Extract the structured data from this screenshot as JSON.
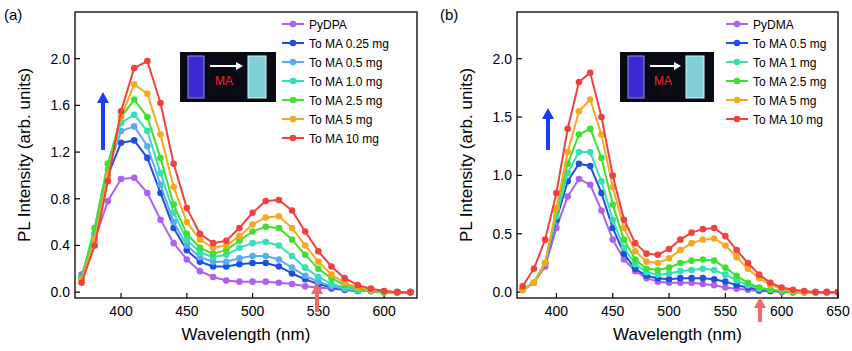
{
  "chart_data": [
    {
      "type": "line",
      "title": "(a)",
      "x_label": "Wavelength (nm)",
      "y_label": "PL Intensity (arb. units)",
      "annotations": [
        "MA"
      ],
      "marker": "circle",
      "legend": "upper right",
      "x": [
        370,
        380,
        390,
        400,
        410,
        420,
        430,
        440,
        450,
        460,
        470,
        480,
        490,
        500,
        510,
        520,
        530,
        540,
        550,
        560,
        570,
        580,
        590,
        600,
        610,
        620
      ],
      "xlim": [
        365,
        625
      ],
      "xticks": [
        400,
        450,
        500,
        550,
        600
      ],
      "ylim": [
        -0.05,
        2.4
      ],
      "yticks": [
        {
          "value": 0,
          "label": "0.0"
        },
        {
          "value": 0.4,
          "label": "0.4"
        },
        {
          "value": 0.8,
          "label": "0.8"
        },
        {
          "value": 1.2,
          "label": "1.2"
        },
        {
          "value": 1.6,
          "label": "1.6"
        },
        {
          "value": 2.0,
          "label": "2.0"
        }
      ],
      "series": [
        {
          "name": "PyDPA",
          "color": "#b060f0",
          "values": [
            0.15,
            0.45,
            0.78,
            0.97,
            0.98,
            0.85,
            0.62,
            0.42,
            0.28,
            0.18,
            0.13,
            0.1,
            0.09,
            0.09,
            0.09,
            0.08,
            0.07,
            0.05,
            0.04,
            0.03,
            0.02,
            0.01,
            0.01,
            0.0,
            0.0,
            0.0
          ]
        },
        {
          "name": "To MA 0.25 mg",
          "color": "#1f4fe0",
          "values": [
            0.12,
            0.5,
            1.0,
            1.28,
            1.3,
            1.15,
            0.85,
            0.55,
            0.36,
            0.26,
            0.22,
            0.22,
            0.24,
            0.25,
            0.25,
            0.22,
            0.16,
            0.11,
            0.07,
            0.04,
            0.02,
            0.01,
            0.01,
            0,
            0,
            0
          ]
        },
        {
          "name": "To MA 0.5 mg",
          "color": "#5aabf5",
          "values": [
            0.12,
            0.5,
            1.05,
            1.38,
            1.42,
            1.25,
            0.92,
            0.6,
            0.4,
            0.3,
            0.26,
            0.26,
            0.29,
            0.31,
            0.31,
            0.28,
            0.21,
            0.14,
            0.09,
            0.05,
            0.03,
            0.01,
            0.01,
            0,
            0,
            0
          ]
        },
        {
          "name": "To MA 1.0 mg",
          "color": "#34e0b8",
          "values": [
            0.12,
            0.55,
            1.1,
            1.45,
            1.52,
            1.38,
            1.02,
            0.68,
            0.45,
            0.34,
            0.3,
            0.32,
            0.38,
            0.42,
            0.43,
            0.4,
            0.31,
            0.21,
            0.13,
            0.07,
            0.04,
            0.02,
            0.01,
            0,
            0,
            0
          ]
        },
        {
          "name": "To MA 2.5 mg",
          "color": "#40e030",
          "values": [
            0.12,
            0.55,
            1.1,
            1.5,
            1.65,
            1.5,
            1.15,
            0.75,
            0.5,
            0.38,
            0.33,
            0.36,
            0.44,
            0.52,
            0.56,
            0.55,
            0.45,
            0.32,
            0.2,
            0.12,
            0.06,
            0.03,
            0.01,
            0,
            0,
            0
          ]
        },
        {
          "name": "To MA 5 mg",
          "color": "#f7a820",
          "values": [
            0.1,
            0.45,
            1.0,
            1.5,
            1.78,
            1.7,
            1.35,
            0.9,
            0.6,
            0.45,
            0.38,
            0.4,
            0.48,
            0.58,
            0.64,
            0.65,
            0.55,
            0.4,
            0.26,
            0.15,
            0.08,
            0.04,
            0.02,
            0.01,
            0,
            0
          ]
        },
        {
          "name": "To MA 10 mg",
          "color": "#f04040",
          "values": [
            0.08,
            0.4,
            0.95,
            1.55,
            1.92,
            1.98,
            1.62,
            1.1,
            0.72,
            0.5,
            0.42,
            0.44,
            0.55,
            0.68,
            0.78,
            0.79,
            0.7,
            0.52,
            0.35,
            0.22,
            0.12,
            0.06,
            0.03,
            0.01,
            0,
            0
          ]
        }
      ]
    },
    {
      "type": "line",
      "title": "(b)",
      "x_label": "Wavelength (nm)",
      "y_label": "PL Intensity (arb. units)",
      "annotations": [
        "MA"
      ],
      "marker": "circle",
      "legend": "upper right",
      "x": [
        370,
        380,
        390,
        400,
        410,
        420,
        430,
        440,
        450,
        460,
        470,
        480,
        490,
        500,
        510,
        520,
        530,
        540,
        550,
        560,
        570,
        580,
        590,
        600,
        610,
        620,
        630,
        640,
        650
      ],
      "xlim": [
        365,
        650
      ],
      "xticks": [
        400,
        450,
        500,
        550,
        600,
        650
      ],
      "ylim": [
        -0.05,
        2.4
      ],
      "yticks": [
        {
          "value": 0,
          "label": "0.0"
        },
        {
          "value": 0.5,
          "label": "0.5"
        },
        {
          "value": 1.0,
          "label": "1.0"
        },
        {
          "value": 1.5,
          "label": "1.5"
        },
        {
          "value": 2.0,
          "label": "2.0"
        }
      ],
      "series": [
        {
          "name": "PyDMA",
          "color": "#b060f0",
          "values": [
            0.02,
            0.08,
            0.22,
            0.55,
            0.82,
            0.97,
            0.92,
            0.7,
            0.45,
            0.28,
            0.18,
            0.12,
            0.09,
            0.08,
            0.08,
            0.08,
            0.07,
            0.06,
            0.04,
            0.03,
            0.02,
            0.01,
            0.01,
            0,
            0,
            0,
            0,
            0,
            0
          ]
        },
        {
          "name": "To MA 0.5 mg",
          "color": "#1f4fe0",
          "values": [
            0.02,
            0.08,
            0.25,
            0.62,
            0.95,
            1.1,
            1.08,
            0.85,
            0.55,
            0.33,
            0.2,
            0.14,
            0.12,
            0.11,
            0.12,
            0.12,
            0.12,
            0.11,
            0.09,
            0.06,
            0.04,
            0.02,
            0.01,
            0.01,
            0,
            0,
            0,
            0,
            0
          ]
        },
        {
          "name": "To MA 1 mg",
          "color": "#34e0b8",
          "values": [
            0.02,
            0.08,
            0.25,
            0.65,
            1.02,
            1.2,
            1.2,
            0.95,
            0.62,
            0.38,
            0.24,
            0.17,
            0.15,
            0.16,
            0.18,
            0.19,
            0.2,
            0.19,
            0.15,
            0.1,
            0.06,
            0.03,
            0.02,
            0.01,
            0,
            0,
            0,
            0,
            0
          ]
        },
        {
          "name": "To MA 2.5 mg",
          "color": "#40e030",
          "values": [
            0.02,
            0.08,
            0.25,
            0.7,
            1.1,
            1.35,
            1.4,
            1.15,
            0.75,
            0.45,
            0.28,
            0.2,
            0.19,
            0.21,
            0.25,
            0.27,
            0.28,
            0.27,
            0.21,
            0.14,
            0.08,
            0.04,
            0.02,
            0.01,
            0,
            0,
            0,
            0,
            0
          ]
        },
        {
          "name": "To MA 5 mg",
          "color": "#f7a820",
          "values": [
            0.02,
            0.08,
            0.25,
            0.72,
            1.2,
            1.55,
            1.65,
            1.35,
            0.9,
            0.55,
            0.35,
            0.26,
            0.25,
            0.29,
            0.36,
            0.42,
            0.45,
            0.46,
            0.4,
            0.3,
            0.2,
            0.12,
            0.06,
            0.03,
            0.01,
            0,
            0,
            0,
            0
          ]
        },
        {
          "name": "To MA 10 mg",
          "color": "#f04040",
          "values": [
            0.05,
            0.2,
            0.45,
            0.85,
            1.4,
            1.8,
            1.88,
            1.5,
            1.0,
            0.62,
            0.42,
            0.33,
            0.32,
            0.37,
            0.45,
            0.51,
            0.54,
            0.55,
            0.48,
            0.36,
            0.25,
            0.15,
            0.08,
            0.04,
            0.02,
            0.01,
            0,
            0,
            0
          ]
        }
      ]
    }
  ]
}
